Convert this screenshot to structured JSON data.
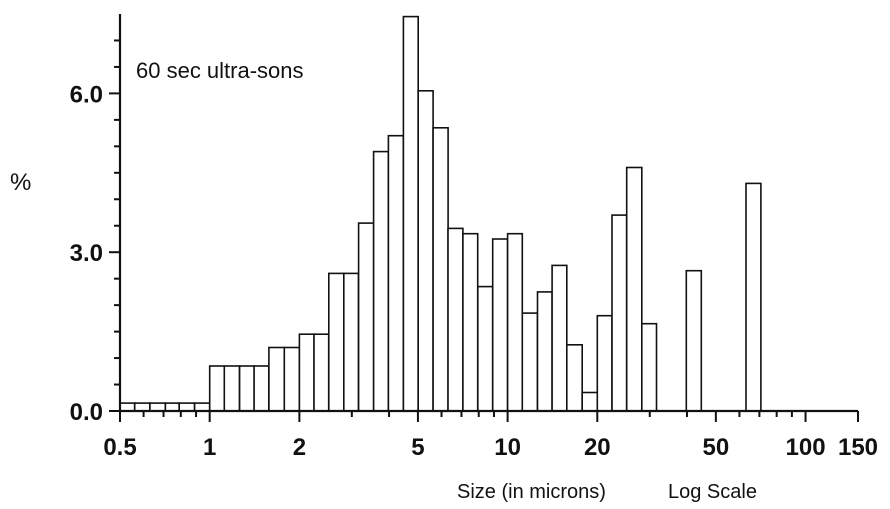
{
  "chart_data": {
    "type": "bar",
    "annotation": "60 sec ultra-sons",
    "ylabel": "%",
    "xlabel": "Size (in microns)",
    "xscale_label": "Log Scale",
    "xscale": "log",
    "xlim": [
      0.5,
      150
    ],
    "ylim": [
      0,
      7.5
    ],
    "grid": false,
    "x_ticks": [
      "0.5",
      "1",
      "2",
      "5",
      "10",
      "20",
      "50",
      "100",
      "150"
    ],
    "y_ticks": [
      "0.0",
      "3.0",
      "6.0"
    ],
    "bins": [
      {
        "x0": 0.5,
        "x1": 0.56,
        "value": 0.15
      },
      {
        "x0": 0.56,
        "x1": 0.63,
        "value": 0.15
      },
      {
        "x0": 0.63,
        "x1": 0.71,
        "value": 0.15
      },
      {
        "x0": 0.71,
        "x1": 0.79,
        "value": 0.15
      },
      {
        "x0": 0.79,
        "x1": 0.89,
        "value": 0.15
      },
      {
        "x0": 0.89,
        "x1": 1.0,
        "value": 0.15
      },
      {
        "x0": 1.0,
        "x1": 1.12,
        "value": 0.85
      },
      {
        "x0": 1.12,
        "x1": 1.26,
        "value": 0.85
      },
      {
        "x0": 1.26,
        "x1": 1.41,
        "value": 0.85
      },
      {
        "x0": 1.41,
        "x1": 1.58,
        "value": 0.85
      },
      {
        "x0": 1.58,
        "x1": 1.78,
        "value": 1.2
      },
      {
        "x0": 1.78,
        "x1": 2.0,
        "value": 1.2
      },
      {
        "x0": 2.0,
        "x1": 2.24,
        "value": 1.45
      },
      {
        "x0": 2.24,
        "x1": 2.51,
        "value": 1.45
      },
      {
        "x0": 2.51,
        "x1": 2.82,
        "value": 2.6
      },
      {
        "x0": 2.82,
        "x1": 3.16,
        "value": 2.6
      },
      {
        "x0": 3.16,
        "x1": 3.55,
        "value": 3.55
      },
      {
        "x0": 3.55,
        "x1": 3.98,
        "value": 4.9
      },
      {
        "x0": 3.98,
        "x1": 4.47,
        "value": 5.2
      },
      {
        "x0": 4.47,
        "x1": 5.01,
        "value": 7.45
      },
      {
        "x0": 5.01,
        "x1": 5.62,
        "value": 6.05
      },
      {
        "x0": 5.62,
        "x1": 6.31,
        "value": 5.35
      },
      {
        "x0": 6.31,
        "x1": 7.08,
        "value": 3.45
      },
      {
        "x0": 7.08,
        "x1": 7.94,
        "value": 3.35
      },
      {
        "x0": 7.94,
        "x1": 8.91,
        "value": 2.35
      },
      {
        "x0": 8.91,
        "x1": 10.0,
        "value": 3.25
      },
      {
        "x0": 10.0,
        "x1": 11.2,
        "value": 3.35
      },
      {
        "x0": 11.2,
        "x1": 12.6,
        "value": 1.85
      },
      {
        "x0": 12.6,
        "x1": 14.1,
        "value": 2.25
      },
      {
        "x0": 14.1,
        "x1": 15.8,
        "value": 2.75
      },
      {
        "x0": 15.8,
        "x1": 17.8,
        "value": 1.25
      },
      {
        "x0": 17.8,
        "x1": 20.0,
        "value": 0.35
      },
      {
        "x0": 20.0,
        "x1": 22.4,
        "value": 1.8
      },
      {
        "x0": 22.4,
        "x1": 25.1,
        "value": 3.7
      },
      {
        "x0": 25.1,
        "x1": 28.2,
        "value": 4.6
      },
      {
        "x0": 28.2,
        "x1": 31.6,
        "value": 1.65
      },
      {
        "x0": 39.8,
        "x1": 44.7,
        "value": 2.65
      },
      {
        "x0": 63.1,
        "x1": 70.8,
        "value": 4.3
      }
    ]
  }
}
